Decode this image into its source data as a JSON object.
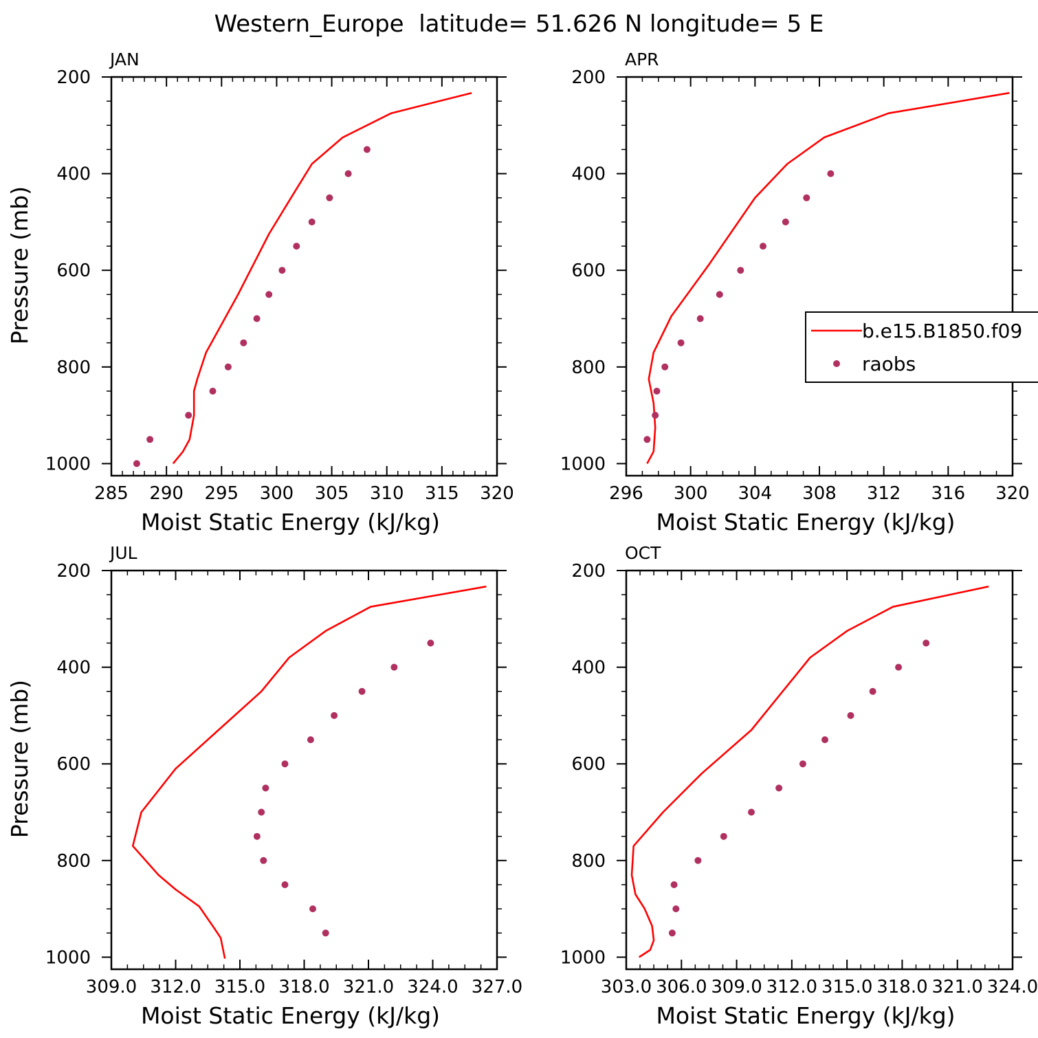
{
  "figure": {
    "title": "Western_Europe  latitude= 51.626 N longitude= 5 E"
  },
  "legend": {
    "model_label": "b.e15.B1850.f09",
    "obs_label": "raobs"
  },
  "colors": {
    "model_line": "#ff0000",
    "obs_marker": "#b03060",
    "axis": "#000000"
  },
  "chart_data": [
    {
      "type": "line",
      "panel": "JAN",
      "xlabel": "Moist Static Energy (kJ/kg)",
      "ylabel": "Pressure (mb)",
      "xlim": [
        285,
        320
      ],
      "ylim": [
        1025,
        200
      ],
      "y_inverted": true,
      "xticks": [
        285,
        290,
        295,
        300,
        305,
        310,
        315,
        320
      ],
      "xtick_labels": [
        "285",
        "290",
        "295",
        "300",
        "305",
        "310",
        "315",
        "320"
      ],
      "xminor_step": 1,
      "yticks": [
        200,
        400,
        600,
        800,
        1000
      ],
      "ytick_labels": [
        "200",
        "400",
        "600",
        "800",
        "1000"
      ],
      "yminor_step": 50,
      "grid": false,
      "series": [
        {
          "name": "b.e15.B1850.f09",
          "kind": "line",
          "x": [
            290.6,
            291.5,
            292.1,
            292.5,
            292.5,
            292.8,
            293.6,
            296.5,
            299.3,
            301.3,
            303.2,
            306.0,
            310.4,
            317.7
          ],
          "y": [
            1000,
            975,
            950,
            900,
            850,
            825,
            770,
            650,
            525,
            450,
            380,
            325,
            275,
            233
          ]
        },
        {
          "name": "raobs",
          "kind": "scatter",
          "x": [
            287.3,
            288.5,
            292.0,
            294.2,
            295.6,
            297.0,
            298.2,
            299.3,
            300.5,
            301.8,
            303.2,
            304.8,
            306.5,
            308.2
          ],
          "y": [
            1000,
            950,
            900,
            850,
            800,
            750,
            700,
            650,
            600,
            550,
            500,
            450,
            400,
            350
          ]
        }
      ]
    },
    {
      "type": "line",
      "panel": "APR",
      "xlabel": "Moist Static Energy (kJ/kg)",
      "ylabel": "",
      "xlim": [
        296,
        320
      ],
      "ylim": [
        1025,
        200
      ],
      "y_inverted": true,
      "xticks": [
        296,
        300,
        304,
        308,
        312,
        316,
        320
      ],
      "xtick_labels": [
        "296",
        "300",
        "304",
        "308",
        "312",
        "316",
        "320"
      ],
      "xminor_step": 1,
      "yticks": [
        200,
        400,
        600,
        800,
        1000
      ],
      "ytick_labels": [
        "200",
        "400",
        "600",
        "800",
        "1000"
      ],
      "yminor_step": 50,
      "grid": false,
      "legend_position": "right",
      "series": [
        {
          "name": "b.e15.B1850.f09",
          "kind": "line",
          "x": [
            297.3,
            297.7,
            297.8,
            297.7,
            297.4,
            297.7,
            298.8,
            301.1,
            304.0,
            306.0,
            308.3,
            312.3,
            319.8
          ],
          "y": [
            1000,
            975,
            925,
            875,
            825,
            770,
            695,
            590,
            450,
            380,
            325,
            275,
            233
          ]
        },
        {
          "name": "raobs",
          "kind": "scatter",
          "x": [
            297.3,
            297.8,
            297.9,
            298.4,
            299.4,
            300.6,
            301.8,
            303.1,
            304.5,
            305.9,
            307.2,
            308.7
          ],
          "y": [
            950,
            900,
            850,
            800,
            750,
            700,
            650,
            600,
            550,
            500,
            450,
            400
          ]
        }
      ]
    },
    {
      "type": "line",
      "panel": "JUL",
      "xlabel": "Moist Static Energy (kJ/kg)",
      "ylabel": "Pressure (mb)",
      "xlim": [
        309,
        327
      ],
      "ylim": [
        1025,
        200
      ],
      "y_inverted": true,
      "xticks": [
        309,
        312,
        315,
        318,
        321,
        324,
        327
      ],
      "xtick_labels": [
        "309.0",
        "312.0",
        "315.0",
        "318.0",
        "321.0",
        "324.0",
        "327.0"
      ],
      "xminor_step": 0.75,
      "yticks": [
        200,
        400,
        600,
        800,
        1000
      ],
      "ytick_labels": [
        "200",
        "400",
        "600",
        "800",
        "1000"
      ],
      "yminor_step": 50,
      "grid": false,
      "series": [
        {
          "name": "b.e15.B1850.f09",
          "kind": "line",
          "x": [
            314.3,
            314.1,
            313.8,
            313.1,
            312.0,
            311.2,
            310.0,
            310.4,
            312.0,
            314.0,
            316.0,
            317.3,
            319.0,
            321.1,
            326.5
          ],
          "y": [
            1003,
            960,
            940,
            895,
            860,
            830,
            770,
            700,
            610,
            530,
            450,
            380,
            325,
            275,
            233
          ]
        },
        {
          "name": "raobs",
          "kind": "scatter",
          "x": [
            319.0,
            318.4,
            317.1,
            316.1,
            315.8,
            316.0,
            316.2,
            317.1,
            318.3,
            319.4,
            320.7,
            322.2,
            323.9
          ],
          "y": [
            950,
            900,
            850,
            800,
            750,
            700,
            650,
            600,
            550,
            500,
            450,
            400,
            350
          ]
        }
      ]
    },
    {
      "type": "line",
      "panel": "OCT",
      "xlabel": "Moist Static Energy (kJ/kg)",
      "ylabel": "",
      "xlim": [
        303,
        324
      ],
      "ylim": [
        1025,
        200
      ],
      "y_inverted": true,
      "xticks": [
        303,
        306,
        309,
        312,
        315,
        318,
        321,
        324
      ],
      "xtick_labels": [
        "303.0",
        "306.0",
        "309.0",
        "312.0",
        "315.0",
        "318.0",
        "321.0",
        "324.0"
      ],
      "xminor_step": 0.75,
      "yticks": [
        200,
        400,
        600,
        800,
        1000
      ],
      "ytick_labels": [
        "200",
        "400",
        "600",
        "800",
        "1000"
      ],
      "yminor_step": 50,
      "grid": false,
      "series": [
        {
          "name": "b.e15.B1850.f09",
          "kind": "line",
          "x": [
            303.7,
            304.3,
            304.5,
            304.4,
            304.0,
            303.5,
            303.3,
            303.4,
            305.0,
            307.1,
            309.8,
            311.5,
            313.0,
            315.0,
            317.5,
            322.7
          ],
          "y": [
            1000,
            985,
            965,
            935,
            900,
            870,
            830,
            770,
            700,
            620,
            530,
            450,
            380,
            325,
            275,
            233
          ]
        },
        {
          "name": "raobs",
          "kind": "scatter",
          "x": [
            305.5,
            305.7,
            305.6,
            306.9,
            308.3,
            309.8,
            311.3,
            312.6,
            313.8,
            315.2,
            316.4,
            317.8,
            319.3
          ],
          "y": [
            950,
            900,
            850,
            800,
            750,
            700,
            650,
            600,
            550,
            500,
            450,
            400,
            350
          ]
        }
      ]
    }
  ]
}
